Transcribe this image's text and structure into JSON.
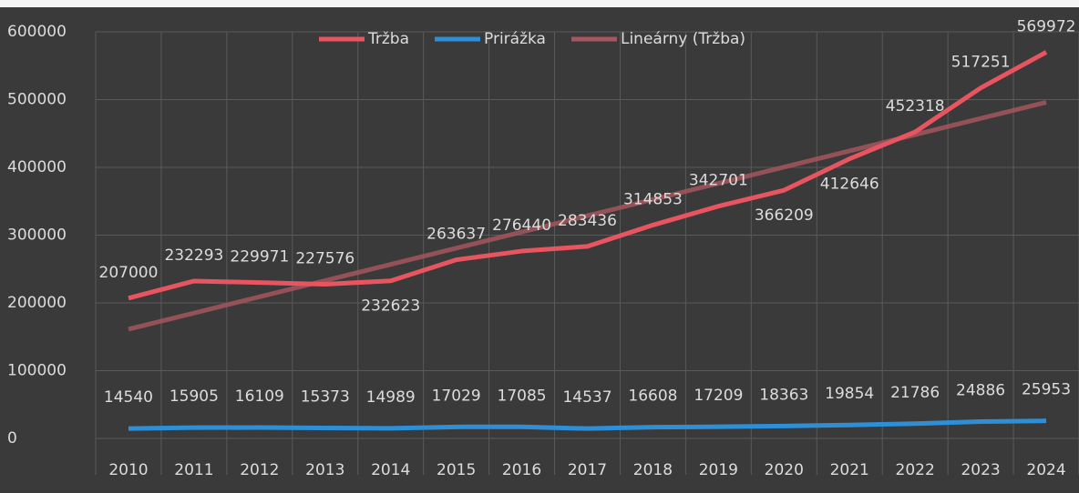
{
  "chart_data": {
    "type": "line",
    "categories": [
      "2010",
      "2011",
      "2012",
      "2013",
      "2014",
      "2015",
      "2016",
      "2017",
      "2018",
      "2019",
      "2020",
      "2021",
      "2022",
      "2023",
      "2024"
    ],
    "series": [
      {
        "name": "Tržba",
        "color": "#e8545f",
        "values": [
          207000,
          232293,
          229971,
          227576,
          232623,
          263637,
          276440,
          283436,
          314853,
          342701,
          366209,
          412646,
          452318,
          517251,
          569972
        ],
        "labels": true
      },
      {
        "name": "Prirážka",
        "color": "#2f8fd6",
        "values": [
          14540,
          15905,
          16109,
          15373,
          14989,
          17029,
          17085,
          14537,
          16608,
          17209,
          18363,
          19854,
          21786,
          24886,
          25953
        ],
        "labels": true
      },
      {
        "name": "Lineárny (Tržba)",
        "color": "#a5565e",
        "values": [
          161099,
          185027,
          208955,
          232883,
          256811,
          280739,
          304667,
          328595,
          352523,
          376451,
          400379,
          424307,
          448235,
          472163,
          496091
        ],
        "labels": false
      }
    ],
    "ylim": [
      0,
      600000
    ],
    "yticks": [
      0,
      100000,
      200000,
      300000,
      400000,
      500000,
      600000
    ],
    "grid": true,
    "legend": "top"
  }
}
